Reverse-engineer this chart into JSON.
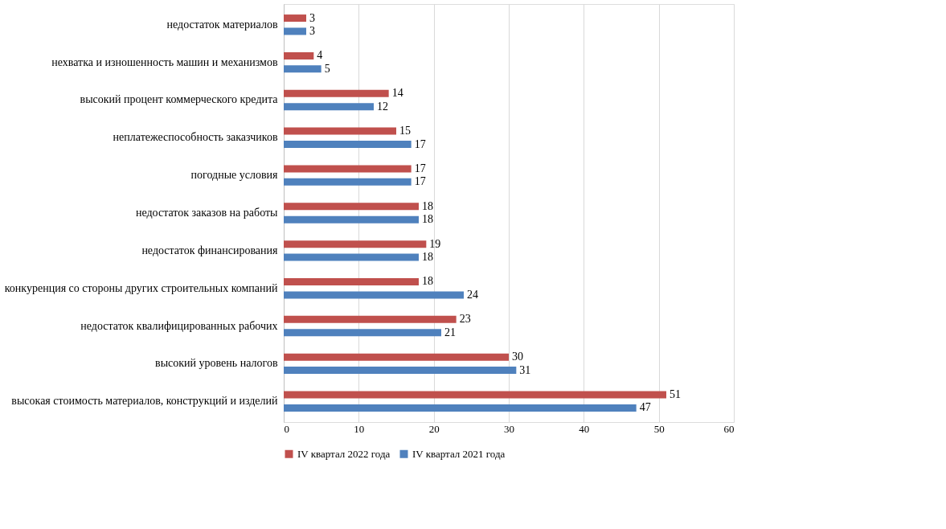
{
  "chart_data": {
    "type": "bar",
    "orientation": "horizontal",
    "categories": [
      "недостаток материалов",
      "нехватка и изношенность машин и механизмов",
      "высокий процент коммерческого кредита",
      "неплатежеспособность заказчиков",
      "погодные условия",
      "недостаток заказов на работы",
      "недостаток финансирования",
      "конкуренция со стороны других строительных компаний",
      "недостаток квалифицированных рабочих",
      "высокий уровень налогов",
      "высокая стоимость материалов, конструкций и изделий"
    ],
    "series": [
      {
        "name": "IV квартал 2022 года",
        "color": "#c0504d",
        "values": [
          3,
          4,
          14,
          15,
          17,
          18,
          19,
          18,
          23,
          30,
          51
        ]
      },
      {
        "name": "IV квартал 2021 года",
        "color": "#4f81bd",
        "values": [
          3,
          5,
          12,
          17,
          17,
          18,
          18,
          24,
          21,
          31,
          47
        ]
      }
    ],
    "xlim": [
      0,
      60
    ],
    "xticks": [
      0,
      10,
      20,
      30,
      40,
      50,
      60
    ],
    "grid": "x",
    "legend": "bottom",
    "data_labels": true
  }
}
